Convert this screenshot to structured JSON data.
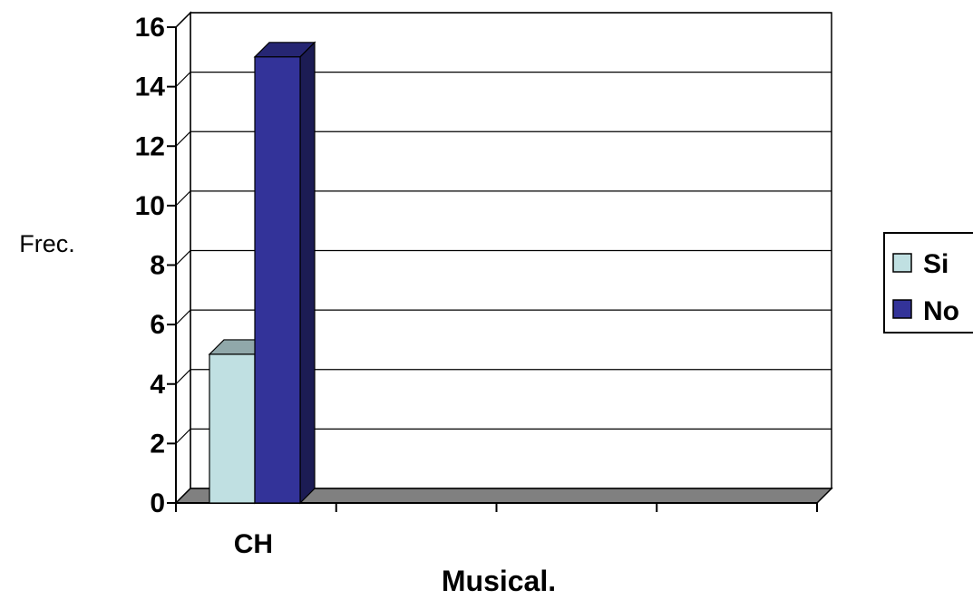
{
  "chart_data": {
    "type": "bar",
    "style": "3d-clustered-column",
    "categories": [
      "CH"
    ],
    "series": [
      {
        "name": "Si",
        "values": [
          5
        ],
        "color": "#c0e0e2"
      },
      {
        "name": "No",
        "values": [
          15
        ],
        "color": "#333399"
      }
    ],
    "xlabel": "Musical.",
    "ylabel": "Frec.",
    "ylim": [
      0,
      16
    ],
    "yticks": [
      0,
      2,
      4,
      6,
      8,
      10,
      12,
      14,
      16
    ],
    "grid": true,
    "legend": "right",
    "floor_color": "#808080"
  }
}
